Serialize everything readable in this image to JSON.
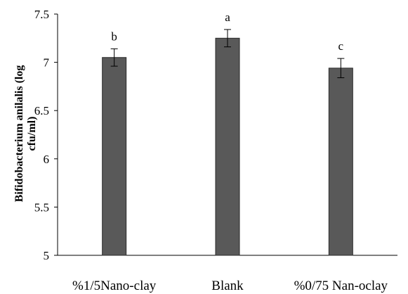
{
  "chart_data": {
    "type": "bar",
    "categories": [
      "%1/5Nano-clay",
      "Blank",
      "%0/75 Nan-oclay"
    ],
    "values": [
      7.05,
      7.25,
      6.94
    ],
    "errors": [
      0.09,
      0.09,
      0.1
    ],
    "annotations": [
      "b",
      "a",
      "c"
    ],
    "ylabel_lines": [
      "Bifidobacterium anilalis (log",
      "cfu/ml)"
    ],
    "ylim": [
      5,
      7.5
    ],
    "yticks": [
      "5",
      "5.5",
      "6",
      "6.5",
      "7",
      "7.5"
    ],
    "bar_color": "#595959",
    "grid": false
  }
}
